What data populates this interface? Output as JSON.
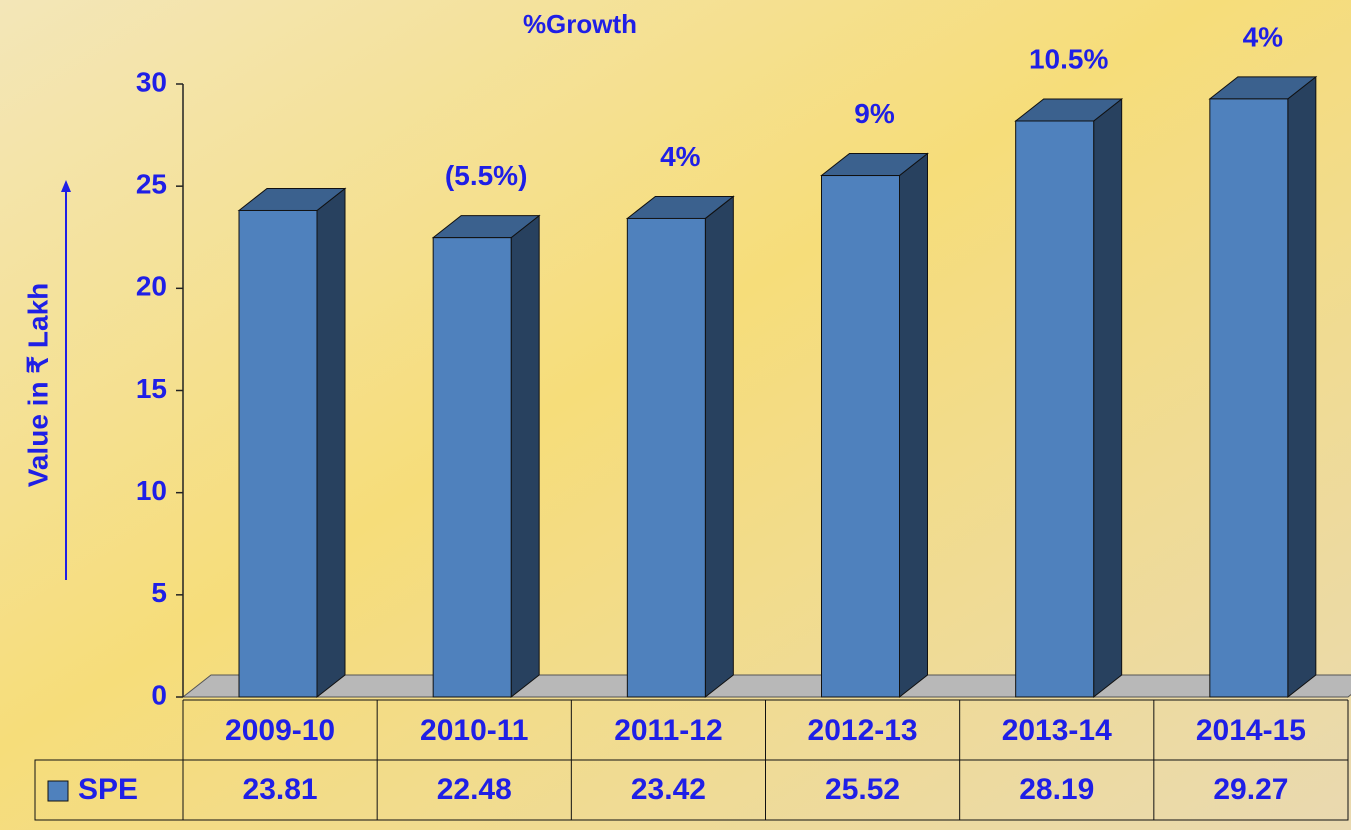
{
  "chart_data": {
    "type": "bar3d",
    "title": "%Growth",
    "y_label": "Value in ₹ Lakh",
    "categories": [
      "2009-10",
      "2010-11",
      "2011-12",
      "2012-13",
      "2013-14",
      "2014-15"
    ],
    "series": [
      {
        "name": "SPE",
        "color": "#4f81bd",
        "values": [
          23.81,
          22.48,
          23.42,
          25.52,
          28.19,
          29.27
        ]
      }
    ],
    "growth_labels": [
      null,
      "(5.5%)",
      "4%",
      "9%",
      "10.5%",
      "4%"
    ],
    "ylim": [
      0,
      30
    ],
    "yticks": [
      0,
      5,
      10,
      15,
      20,
      25,
      30
    ],
    "data_table": true
  }
}
